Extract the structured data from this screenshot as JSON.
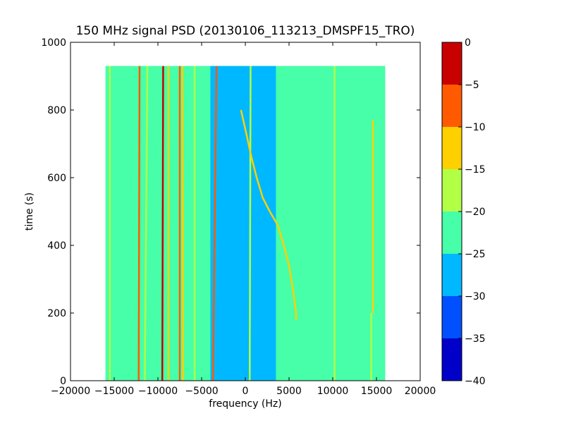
{
  "chart_data": {
    "type": "heatmap",
    "title": "150 MHz signal PSD (20130106_113213_DMSPF15_TRO)",
    "xlabel": "frequency (Hz)",
    "ylabel": "time (s)",
    "xlim": [
      -20000,
      20000
    ],
    "ylim": [
      0,
      1000
    ],
    "data_extent": {
      "x": [
        -16000,
        16000
      ],
      "y": [
        0,
        930
      ]
    },
    "xticks": [
      -20000,
      -15000,
      -10000,
      -5000,
      0,
      5000,
      10000,
      15000,
      20000
    ],
    "xtick_labels": [
      "−20000",
      "−15000",
      "−10000",
      "−5000",
      "0",
      "5000",
      "10000",
      "15000",
      "20000"
    ],
    "yticks": [
      0,
      200,
      400,
      600,
      800,
      1000
    ],
    "ytick_labels": [
      "0",
      "200",
      "400",
      "600",
      "800",
      "1000"
    ],
    "colorbar": {
      "levels": [
        -40,
        -35,
        -30,
        -25,
        -20,
        -15,
        -10,
        -5,
        0
      ],
      "labels": [
        "−40",
        "−35",
        "−30",
        "−25",
        "−20",
        "−15",
        "−10",
        "−5",
        "0"
      ],
      "colors": [
        "#0000c8",
        "#0050ff",
        "#00b8ff",
        "#46ffa8",
        "#b2ff46",
        "#ffd000",
        "#ff5a00",
        "#c80000"
      ]
    },
    "background_level_color": "#46ffa8",
    "quiet_band": {
      "x": [
        -4000,
        3500
      ],
      "color": "#00b8ff"
    },
    "lines": [
      {
        "x": [
          -15500,
          -15500
        ],
        "y": [
          0,
          930
        ],
        "color": "#b2ff46"
      },
      {
        "x": [
          -12200,
          -12100
        ],
        "y": [
          0,
          930
        ],
        "color": "#ff5a00"
      },
      {
        "x": [
          -11500,
          -11200
        ],
        "y": [
          0,
          930
        ],
        "color": "#b2ff46"
      },
      {
        "x": [
          -9500,
          -9400
        ],
        "y": [
          0,
          930
        ],
        "color": "#c80000"
      },
      {
        "x": [
          -8800,
          -8800
        ],
        "y": [
          0,
          930
        ],
        "color": "#ffd000"
      },
      {
        "x": [
          -7500,
          -7500
        ],
        "y": [
          0,
          930
        ],
        "color": "#ff5a00"
      },
      {
        "x": [
          -7100,
          -7200
        ],
        "y": [
          0,
          930
        ],
        "color": "#ffd000"
      },
      {
        "x": [
          -5800,
          -5800
        ],
        "y": [
          0,
          930
        ],
        "color": "#b2ff46"
      },
      {
        "x": [
          -3700,
          -3300
        ],
        "y": [
          0,
          930
        ],
        "color": "#ff5a00"
      },
      {
        "x": [
          500,
          600
        ],
        "y": [
          0,
          930
        ],
        "color": "#b2ff46"
      },
      {
        "x": [
          10200,
          10200
        ],
        "y": [
          0,
          930
        ],
        "color": "#b2ff46"
      },
      {
        "x": [
          14600,
          14600
        ],
        "y": [
          200,
          770
        ],
        "color": "#ffd000"
      },
      {
        "x": [
          14400,
          14400
        ],
        "y": [
          0,
          200
        ],
        "color": "#b2ff46"
      }
    ],
    "sweep_curve": {
      "x": [
        -500,
        200,
        700,
        1300,
        2000,
        2800,
        3700,
        4400,
        5000,
        5500,
        5800,
        5800
      ],
      "y": [
        800,
        720,
        660,
        600,
        540,
        500,
        460,
        400,
        340,
        260,
        200,
        180
      ],
      "color": "#ffd000"
    }
  }
}
